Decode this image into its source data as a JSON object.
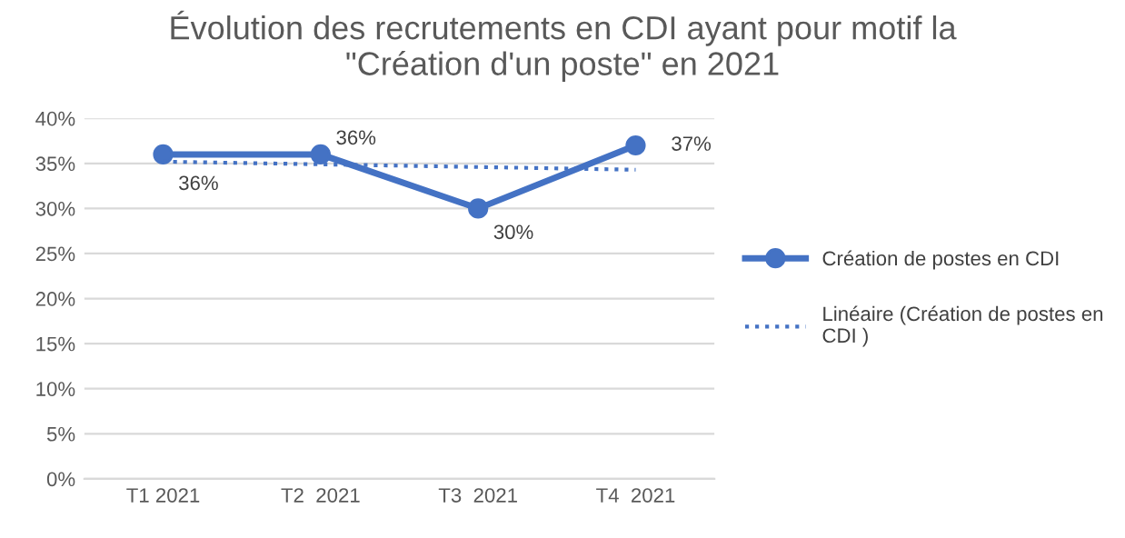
{
  "chart_data": {
    "type": "line",
    "title": "Évolution des recrutements en CDI ayant pour motif la\n\"Création d'un poste\" en 2021",
    "categories": [
      "T1 2021",
      "T2  2021",
      "T3  2021",
      "T4  2021"
    ],
    "series": [
      {
        "name": "Création de postes en CDI",
        "color": "#4472c4",
        "values": [
          36,
          36,
          30,
          37
        ],
        "value_labels": [
          "36%",
          "36%",
          "30%",
          "37%"
        ],
        "marker": "circle",
        "line_style": "solid"
      },
      {
        "name": "Linéaire (Création de postes en\nCDI )",
        "color": "#4472c4",
        "values": [
          35.2,
          34.9,
          34.6,
          34.3
        ],
        "marker": "none",
        "line_style": "dotted"
      }
    ],
    "ylim": [
      0,
      40
    ],
    "yticks": [
      {
        "value": 0,
        "label": "0%"
      },
      {
        "value": 5,
        "label": "5%"
      },
      {
        "value": 10,
        "label": "10%"
      },
      {
        "value": 15,
        "label": "15%"
      },
      {
        "value": 20,
        "label": "20%"
      },
      {
        "value": 25,
        "label": "25%"
      },
      {
        "value": 30,
        "label": "30%"
      },
      {
        "value": 35,
        "label": "35%"
      },
      {
        "value": 40,
        "label": "40%"
      }
    ],
    "grid": "y",
    "legend": "right"
  }
}
